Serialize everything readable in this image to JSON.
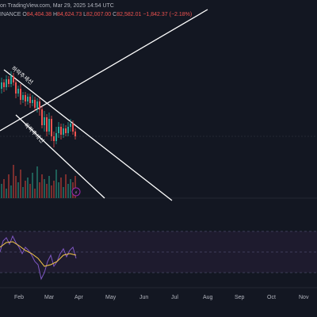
{
  "header": {
    "credit": "on TradingView.com, Mar 29, 2025 14:54 UTC",
    "exchange": "INANCE",
    "ohlc": {
      "o_label": "O",
      "o": "84,404.38",
      "h_label": "H",
      "h": "84,624.73",
      "l_label": "L",
      "l": "82,007.00",
      "c_label": "C",
      "c": "82,582.01",
      "change": "−1,842.37 (−2.18%)"
    }
  },
  "annotations": {
    "upper_channel_label": "하락추세선",
    "lower_channel_label": "하락추세선",
    "badge": "⚡"
  },
  "xaxis": {
    "labels": [
      "Feb",
      "Mar",
      "Apr",
      "May",
      "Jun",
      "Jul",
      "Aug",
      "Sep",
      "Oct",
      "Nov"
    ]
  },
  "colors": {
    "background": "#131722",
    "up": "#26a69a",
    "down": "#ef5350",
    "trendline": "#ffffff",
    "rsi_line": "#7e57c2",
    "rsi_ma": "#f7c948",
    "rsi_band": "#7e57c2"
  },
  "chart_data": {
    "type": "candlestick",
    "x_range": [
      "2025-01",
      "2025-11"
    ]
  }
}
